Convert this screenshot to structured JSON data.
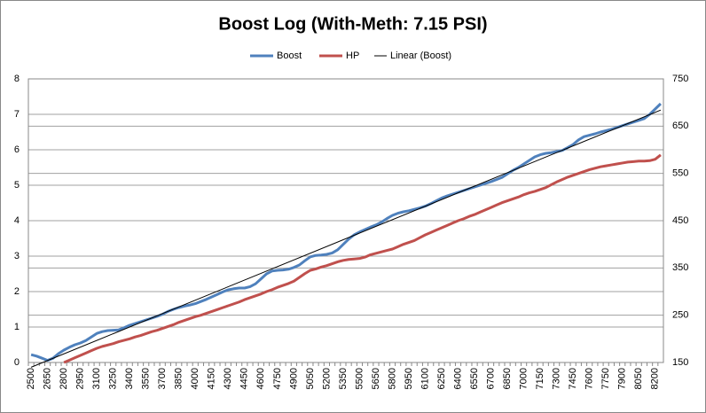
{
  "chart_data": {
    "type": "line",
    "title": "Boost Log (With-Meth: 7.15 PSI)",
    "categories": [
      2500,
      null,
      null,
      2650,
      null,
      null,
      2800,
      null,
      null,
      2950,
      null,
      null,
      3100,
      null,
      null,
      3250,
      null,
      null,
      3400,
      null,
      null,
      3550,
      null,
      null,
      3700,
      null,
      null,
      3850,
      null,
      null,
      4000,
      null,
      null,
      4150,
      null,
      null,
      4300,
      null,
      null,
      4450,
      null,
      null,
      4600,
      null,
      null,
      4750,
      null,
      null,
      4900,
      null,
      null,
      5050,
      null,
      null,
      5200,
      null,
      null,
      5350,
      null,
      null,
      5500,
      null,
      null,
      5650,
      null,
      null,
      5800,
      null,
      null,
      5950,
      null,
      null,
      6100,
      null,
      null,
      6250,
      null,
      null,
      6400,
      null,
      null,
      6550,
      null,
      null,
      6700,
      null,
      null,
      6850,
      null,
      null,
      7000,
      null,
      null,
      7150,
      null,
      null,
      7300,
      null,
      null,
      7450,
      null,
      null,
      7600,
      null,
      null,
      7750,
      null,
      null,
      7900,
      null,
      null,
      8050,
      null,
      null,
      8200,
      null
    ],
    "series": [
      {
        "name": "Boost",
        "color": "#4f81bd",
        "values": [
          0.22,
          0.18,
          0.12,
          0.06,
          0.12,
          0.25,
          0.35,
          0.43,
          0.5,
          0.55,
          0.62,
          0.72,
          0.82,
          0.87,
          0.9,
          0.91,
          0.92,
          0.98,
          1.05,
          1.1,
          1.15,
          1.2,
          1.25,
          1.3,
          1.36,
          1.44,
          1.5,
          1.55,
          1.59,
          1.62,
          1.66,
          1.72,
          1.78,
          1.85,
          1.92,
          1.99,
          2.05,
          2.08,
          2.1,
          2.1,
          2.14,
          2.22,
          2.36,
          2.5,
          2.58,
          2.6,
          2.61,
          2.63,
          2.68,
          2.75,
          2.87,
          2.98,
          3.02,
          3.03,
          3.05,
          3.09,
          3.18,
          3.33,
          3.48,
          3.6,
          3.68,
          3.75,
          3.82,
          3.88,
          3.96,
          4.06,
          4.15,
          4.21,
          4.25,
          4.28,
          4.32,
          4.36,
          4.41,
          4.48,
          4.56,
          4.64,
          4.7,
          4.75,
          4.8,
          4.85,
          4.9,
          4.95,
          5.0,
          5.05,
          5.1,
          5.16,
          5.22,
          5.32,
          5.42,
          5.5,
          5.6,
          5.7,
          5.8,
          5.86,
          5.9,
          5.92,
          5.95,
          5.98,
          6.06,
          6.15,
          6.28,
          6.37,
          6.41,
          6.45,
          6.5,
          6.54,
          6.58,
          6.63,
          6.68,
          6.73,
          6.78,
          6.83,
          6.88,
          7.0,
          7.15,
          7.3
        ]
      },
      {
        "name": "HP",
        "color": "#c0504d",
        "axis": "y2",
        "values": [
          null,
          null,
          null,
          null,
          null,
          null,
          150,
          155,
          160,
          165,
          170,
          175,
          180,
          184,
          187,
          190,
          194,
          197,
          200,
          204,
          207,
          211,
          215,
          218,
          222,
          226,
          230,
          235,
          239,
          243,
          247,
          250,
          254,
          258,
          262,
          266,
          270,
          274,
          278,
          283,
          287,
          291,
          295,
          300,
          304,
          309,
          313,
          317,
          322,
          330,
          338,
          345,
          348,
          352,
          355,
          359,
          363,
          366,
          368,
          369,
          370,
          373,
          378,
          381,
          384,
          387,
          390,
          395,
          400,
          404,
          408,
          414,
          420,
          425,
          430,
          435,
          440,
          445,
          450,
          454,
          459,
          463,
          468,
          473,
          478,
          483,
          488,
          492,
          496,
          500,
          505,
          509,
          512,
          516,
          520,
          526,
          532,
          537,
          542,
          546,
          550,
          554,
          558,
          561,
          564,
          566,
          568,
          570,
          572,
          574,
          575,
          576,
          576,
          577,
          580,
          589
        ]
      },
      {
        "name": "Linear (Boost)",
        "color": "#000000",
        "trendline": "linear",
        "trendline_of": 0
      }
    ],
    "ylim": [
      0,
      8
    ],
    "yticks": [
      0,
      1,
      2,
      3,
      4,
      5,
      6,
      7,
      8
    ],
    "y2lim": [
      150,
      750
    ],
    "y2ticks": [
      150,
      250,
      350,
      450,
      550,
      650,
      750
    ],
    "grid": true,
    "legend": "top"
  }
}
